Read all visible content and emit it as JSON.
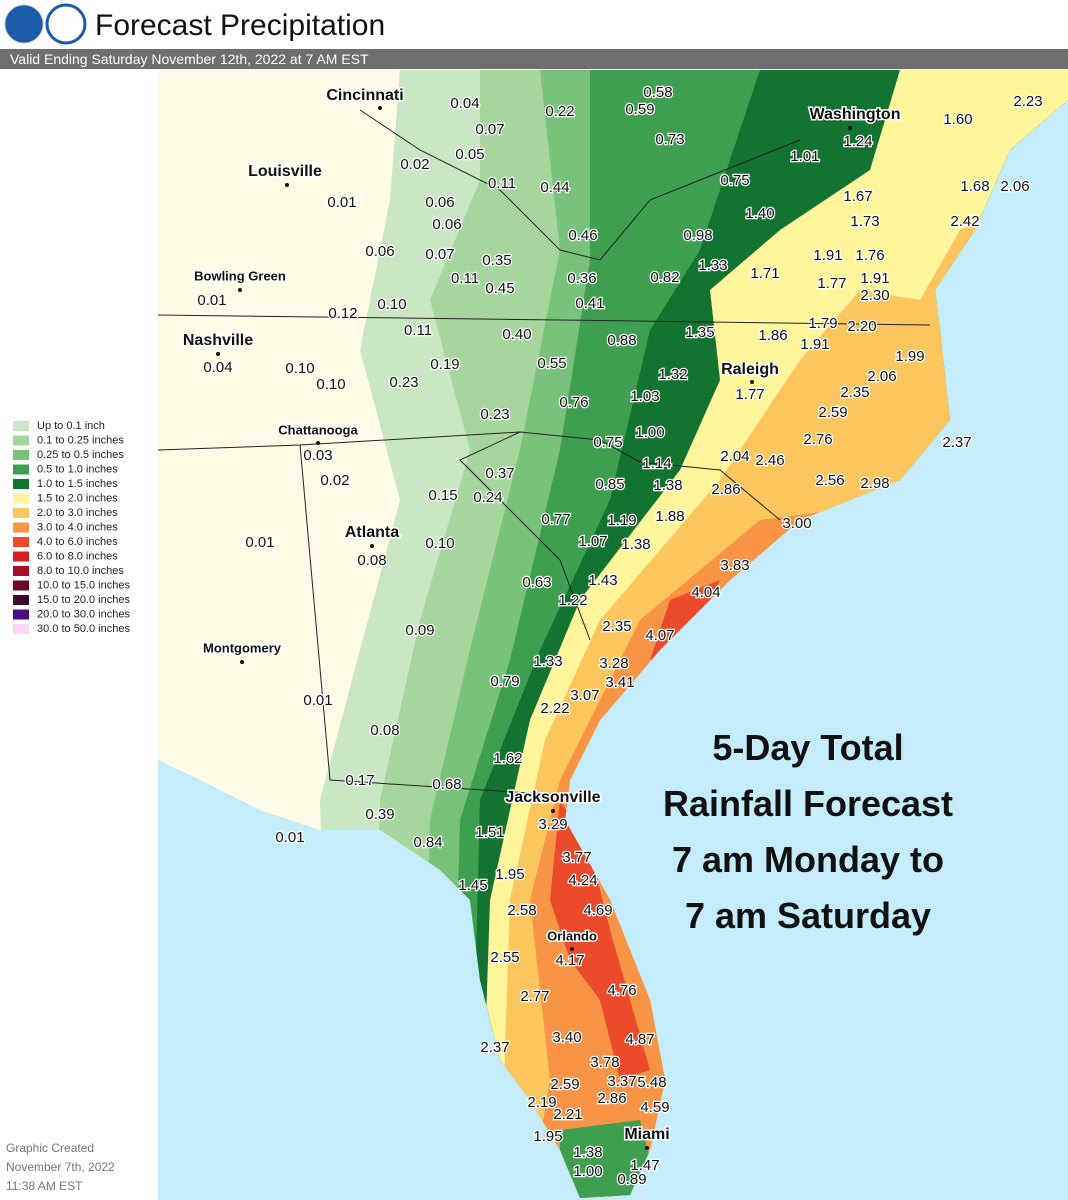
{
  "header": {
    "title": "Forecast Precipitation",
    "subtitle": "Valid Ending Saturday November 12th, 2022 at 7 AM EST"
  },
  "legend": [
    {
      "label": "Up to 0.1 inch",
      "color": "#c9e7c3"
    },
    {
      "label": "0.1 to 0.25 inches",
      "color": "#a6d69e"
    },
    {
      "label": "0.25 to 0.5 inches",
      "color": "#79c27c"
    },
    {
      "label": "0.5 to 1.0 inches",
      "color": "#3d9f4f"
    },
    {
      "label": "1.0 to 1.5 inches",
      "color": "#137330"
    },
    {
      "label": "1.5 to 2.0 inches",
      "color": "#fff59a"
    },
    {
      "label": "2.0 to 3.0 inches",
      "color": "#fcc65f"
    },
    {
      "label": "3.0 to 4.0 inches",
      "color": "#f79446"
    },
    {
      "label": "4.0 to 6.0 inches",
      "color": "#eb4b2b"
    },
    {
      "label": "6.0 to 8.0 inches",
      "color": "#d51f25"
    },
    {
      "label": "8.0 to 10.0 inches",
      "color": "#a50f2a"
    },
    {
      "label": "10.0 to 15.0 inches",
      "color": "#6b0a25"
    },
    {
      "label": "15.0 to 20.0 inches",
      "color": "#3d0a2e"
    },
    {
      "label": "20.0 to 30.0 inches",
      "color": "#4b0f80"
    },
    {
      "label": "30.0 to 50.0 inches",
      "color": "#fdd6fb"
    }
  ],
  "cities": [
    "Cincinnati",
    "Washington",
    "Louisville",
    "Bowling Green",
    "Nashville",
    "Raleigh",
    "Chattanooga",
    "Atlanta",
    "Montgomery",
    "Jacksonville",
    "Orlando",
    "Miami"
  ],
  "amounts": [
    "0.58",
    "0.04",
    "0.22",
    "0.59",
    "0.07",
    "0.73",
    "0.05",
    "1.24",
    "1.01",
    "0.02",
    "0.11",
    "0.44",
    "0.75",
    "1.60",
    "2.23",
    "1.67",
    "1.68",
    "2.06",
    "0.01",
    "0.06",
    "1.40",
    "1.73",
    "2.42",
    "0.06",
    "0.46",
    "0.98",
    "0.06",
    "0.07",
    "0.35",
    "1.33",
    "1.71",
    "1.91",
    "1.76",
    "0.11",
    "0.36",
    "0.82",
    "1.77",
    "1.91",
    "0.45",
    "2.30",
    "0.01",
    "0.41",
    "0.10",
    "0.12",
    "1.79",
    "2.20",
    "1.35",
    "1.86",
    "0.11",
    "0.40",
    "0.88",
    "1.91",
    "1.99",
    "0.04",
    "0.10",
    "1.32",
    "2.06",
    "0.55",
    "0.19",
    "1.77",
    "0.10",
    "0.23",
    "1.03",
    "2.35",
    "0.76",
    "2.59",
    "0.23",
    "1.00",
    "0.75",
    "2.76",
    "2.37",
    "1.14",
    "2.04",
    "2.46",
    "0.03",
    "0.37",
    "0.02",
    "1.38",
    "0.85",
    "2.56",
    "2.98",
    "2.86",
    "0.15",
    "0.24",
    "0.77",
    "1.19",
    "1.88",
    "3.00",
    "0.01",
    "0.10",
    "1.07",
    "1.38",
    "0.08",
    "3.83",
    "4.04",
    "0.63",
    "1.43",
    "1.22",
    "0.09",
    "2.35",
    "4.07",
    "3.28",
    "1.33",
    "3.41",
    "0.79",
    "3.07",
    "0.01",
    "2.22",
    "0.08",
    "1.62",
    "0.17",
    "0.68",
    "3.29",
    "0.39",
    "1.51",
    "0.84",
    "0.01",
    "3.77",
    "1.95",
    "4.24",
    "1.45",
    "4.69",
    "2.58",
    "4.17",
    "2.55",
    "4.76",
    "2.77",
    "4.87",
    "3.40",
    "2.37",
    "3.78",
    "5.48",
    "3.37",
    "2.59",
    "2.86",
    "2.19",
    "4.59",
    "2.21",
    "1.95",
    "1.38",
    "1.47",
    "1.00",
    "0.89"
  ],
  "annotation": [
    "5-Day Total",
    "Rainfall Forecast",
    "7 am Monday to",
    "7 am Saturday"
  ],
  "created": [
    "Graphic Created",
    "November 7th, 2022",
    "11:38 AM EST"
  ]
}
